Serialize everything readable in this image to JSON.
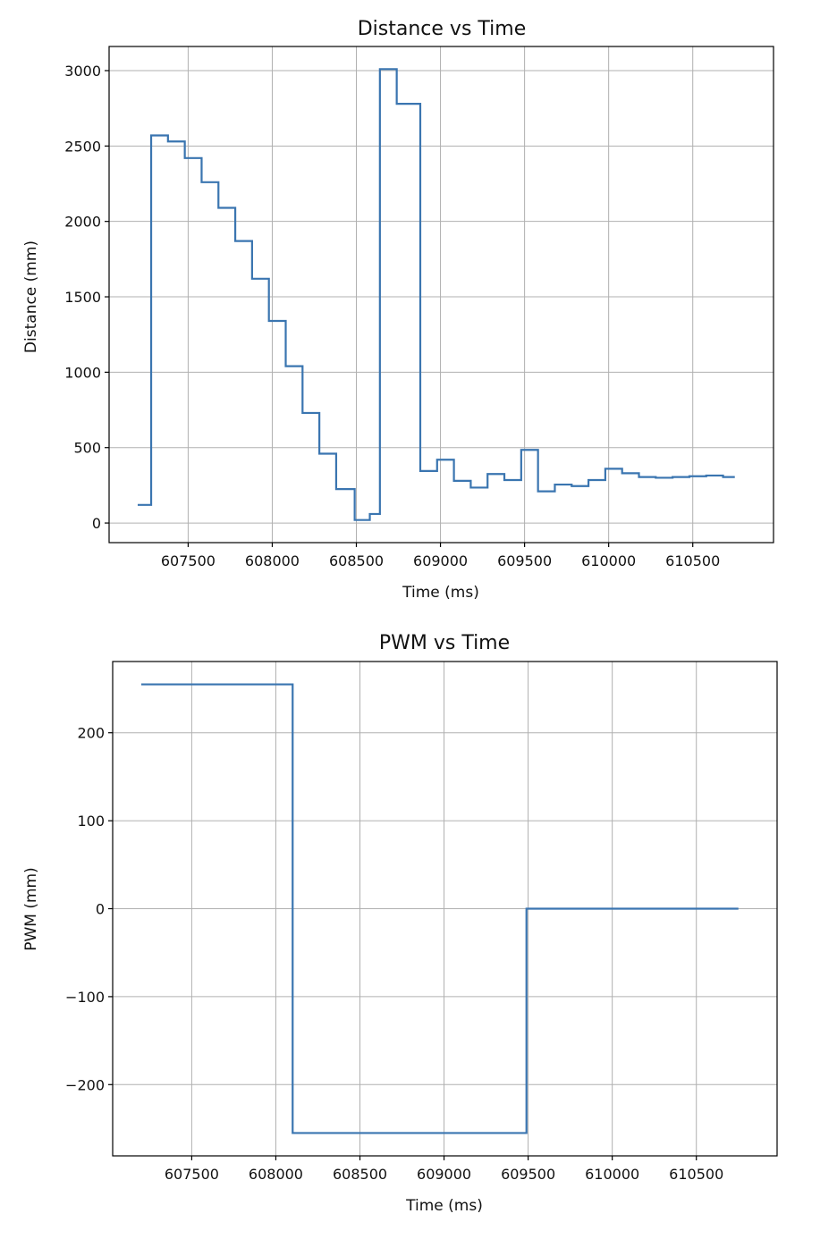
{
  "chart_data": [
    {
      "type": "line",
      "title": "Distance vs Time",
      "xlabel": "Time (ms)",
      "ylabel": "Distance (mm)",
      "xlim": [
        607030,
        610980
      ],
      "ylim": [
        -130,
        3160
      ],
      "xticks": [
        607500,
        608000,
        608500,
        609000,
        609500,
        610000,
        610500
      ],
      "yticks": [
        0,
        500,
        1000,
        1500,
        2000,
        2500,
        3000
      ],
      "grid": true,
      "color": "#3a75b0",
      "series": [
        {
          "x": [
            607200,
            607280,
            607280,
            607380,
            607380,
            607480,
            607480,
            607580,
            607580,
            607680,
            607680,
            607780,
            607780,
            607880,
            607880,
            607980,
            607980,
            608080,
            608080,
            608180,
            608180,
            608280,
            608280,
            608380,
            608380,
            608490,
            608490,
            608580,
            608580,
            608640,
            608640,
            608740,
            608740,
            608880,
            608880,
            608980,
            608980,
            609080,
            609080,
            609180,
            609180,
            609280,
            609280,
            609380,
            609380,
            609480,
            609480,
            609580,
            609580,
            609680,
            609680,
            609780,
            609780,
            609880,
            609880,
            609980,
            609980,
            610080,
            610080,
            610180,
            610180,
            610280,
            610280,
            610380,
            610380,
            610480,
            610480,
            610580,
            610580,
            610680,
            610680,
            610750
          ],
          "y": [
            120,
            120,
            2570,
            2570,
            2530,
            2530,
            2420,
            2420,
            2260,
            2260,
            2090,
            2090,
            1870,
            1870,
            1620,
            1620,
            1340,
            1340,
            1040,
            1040,
            730,
            730,
            460,
            460,
            225,
            225,
            20,
            20,
            60,
            60,
            3010,
            3010,
            2780,
            2780,
            345,
            345,
            420,
            420,
            280,
            280,
            235,
            235,
            325,
            325,
            285,
            285,
            485,
            485,
            210,
            210,
            255,
            255,
            245,
            245,
            285,
            285,
            360,
            360,
            330,
            330,
            305,
            305,
            300,
            300,
            305,
            305,
            310,
            310,
            315,
            315,
            305,
            305
          ]
        }
      ]
    },
    {
      "type": "line",
      "title": "PWM vs Time",
      "xlabel": "Time (ms)",
      "ylabel": "PWM (mm)",
      "xlim": [
        607030,
        610980
      ],
      "ylim": [
        -281,
        281
      ],
      "xticks": [
        607500,
        608000,
        608500,
        609000,
        609500,
        610000,
        610500
      ],
      "yticks": [
        200,
        100,
        0,
        -100,
        -200
      ],
      "ytick_labels": [
        "200",
        "100",
        "0",
        "−100",
        "−200"
      ],
      "grid": true,
      "color": "#3a75b0",
      "series": [
        {
          "x": [
            607200,
            608100,
            608100,
            609490,
            609490,
            610750
          ],
          "y": [
            255,
            255,
            -255,
            -255,
            0,
            0
          ]
        }
      ]
    }
  ]
}
